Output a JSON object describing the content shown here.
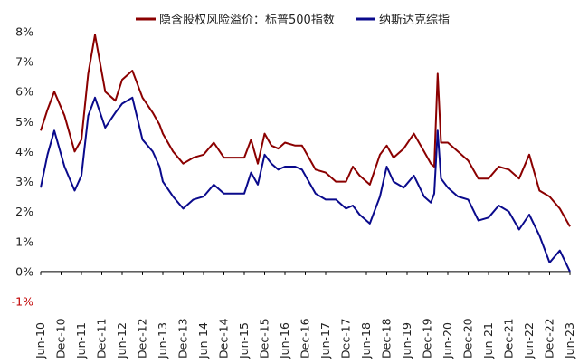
{
  "chart_data": {
    "type": "line",
    "title": "",
    "xlabel": "",
    "ylabel": "",
    "ylim": [
      -1,
      8
    ],
    "yticks": [
      "-1%",
      "0%",
      "1%",
      "2%",
      "3%",
      "4%",
      "5%",
      "6%",
      "7%",
      "8%"
    ],
    "ytick_values": [
      -1,
      0,
      1,
      2,
      3,
      4,
      5,
      6,
      7,
      8
    ],
    "xlim": [
      "2010-06",
      "2023-06"
    ],
    "xticks": [
      "Jun-10",
      "Dec-10",
      "Jun-11",
      "Dec-11",
      "Jun-12",
      "Dec-12",
      "Jun-13",
      "Dec-13",
      "Jun-14",
      "Dec-14",
      "Jun-15",
      "Dec-15",
      "Jun-16",
      "Dec-16",
      "Jun-17",
      "Dec-17",
      "Jun-18",
      "Dec-18",
      "Jun-19",
      "Dec-19",
      "Jun-20",
      "Dec-20",
      "Jun-21",
      "Dec-21",
      "Jun-22",
      "Dec-22",
      "Jun-23"
    ],
    "xtick_values": [
      "2010-06",
      "2010-12",
      "2011-06",
      "2011-12",
      "2012-06",
      "2012-12",
      "2013-06",
      "2013-12",
      "2014-06",
      "2014-12",
      "2015-06",
      "2015-12",
      "2016-06",
      "2016-12",
      "2017-06",
      "2017-12",
      "2018-06",
      "2018-12",
      "2019-06",
      "2019-12",
      "2020-06",
      "2020-12",
      "2021-06",
      "2021-12",
      "2022-06",
      "2022-12",
      "2023-06"
    ],
    "grid": false,
    "legend_position": "top",
    "series": [
      {
        "name": "隐含股权风险溢价：标普500指数",
        "color": "#8b0000",
        "x": [
          "2010-06",
          "2010-08",
          "2010-10",
          "2011-01",
          "2011-04",
          "2011-06",
          "2011-08",
          "2011-10",
          "2012-01",
          "2012-04",
          "2012-06",
          "2012-09",
          "2012-12",
          "2013-03",
          "2013-05",
          "2013-06",
          "2013-09",
          "2013-12",
          "2014-03",
          "2014-06",
          "2014-09",
          "2014-12",
          "2015-03",
          "2015-06",
          "2015-08",
          "2015-10",
          "2015-12",
          "2016-02",
          "2016-04",
          "2016-06",
          "2016-09",
          "2016-11",
          "2017-03",
          "2017-06",
          "2017-09",
          "2017-12",
          "2018-02",
          "2018-04",
          "2018-07",
          "2018-10",
          "2018-12",
          "2019-02",
          "2019-05",
          "2019-08",
          "2019-11",
          "2020-01",
          "2020-02",
          "2020-03",
          "2020-04",
          "2020-06",
          "2020-09",
          "2020-12",
          "2021-03",
          "2021-06",
          "2021-09",
          "2021-12",
          "2022-03",
          "2022-06",
          "2022-09",
          "2022-12",
          "2023-03",
          "2023-06"
        ],
        "y": [
          4.7,
          5.4,
          6.0,
          5.2,
          4.0,
          4.4,
          6.6,
          7.9,
          6.0,
          5.7,
          6.4,
          6.7,
          5.8,
          5.3,
          4.9,
          4.6,
          4.0,
          3.6,
          3.8,
          3.9,
          4.3,
          3.8,
          3.8,
          3.8,
          4.4,
          3.6,
          4.6,
          4.2,
          4.1,
          4.3,
          4.2,
          4.2,
          3.4,
          3.3,
          3.0,
          3.0,
          3.5,
          3.2,
          2.9,
          3.9,
          4.2,
          3.8,
          4.1,
          4.6,
          4.0,
          3.6,
          3.5,
          6.6,
          4.3,
          4.3,
          4.0,
          3.7,
          3.1,
          3.1,
          3.5,
          3.4,
          3.1,
          3.9,
          2.7,
          2.5,
          2.1,
          1.5
        ]
      },
      {
        "name": "纳斯达克综指",
        "color": "#0a0a8c",
        "x": [
          "2010-06",
          "2010-08",
          "2010-10",
          "2011-01",
          "2011-04",
          "2011-06",
          "2011-08",
          "2011-10",
          "2012-01",
          "2012-04",
          "2012-06",
          "2012-09",
          "2012-12",
          "2013-03",
          "2013-05",
          "2013-06",
          "2013-09",
          "2013-12",
          "2014-03",
          "2014-06",
          "2014-09",
          "2014-12",
          "2015-03",
          "2015-06",
          "2015-08",
          "2015-10",
          "2015-12",
          "2016-02",
          "2016-04",
          "2016-06",
          "2016-09",
          "2016-11",
          "2017-03",
          "2017-06",
          "2017-09",
          "2017-12",
          "2018-02",
          "2018-04",
          "2018-07",
          "2018-10",
          "2018-12",
          "2019-02",
          "2019-05",
          "2019-08",
          "2019-11",
          "2020-01",
          "2020-02",
          "2020-03",
          "2020-04",
          "2020-06",
          "2020-09",
          "2020-12",
          "2021-03",
          "2021-06",
          "2021-09",
          "2021-12",
          "2022-03",
          "2022-06",
          "2022-09",
          "2022-12",
          "2023-03",
          "2023-06"
        ],
        "y": [
          2.8,
          3.9,
          4.7,
          3.5,
          2.7,
          3.2,
          5.2,
          5.8,
          4.8,
          5.3,
          5.6,
          5.8,
          4.4,
          4.0,
          3.5,
          3.0,
          2.5,
          2.1,
          2.4,
          2.5,
          2.9,
          2.6,
          2.6,
          2.6,
          3.3,
          2.9,
          3.9,
          3.6,
          3.4,
          3.5,
          3.5,
          3.4,
          2.6,
          2.4,
          2.4,
          2.1,
          2.2,
          1.9,
          1.6,
          2.5,
          3.5,
          3.0,
          2.8,
          3.2,
          2.5,
          2.3,
          2.6,
          4.7,
          3.1,
          2.8,
          2.5,
          2.4,
          1.7,
          1.8,
          2.2,
          2.0,
          1.4,
          1.9,
          1.2,
          0.3,
          0.7,
          0.0
        ]
      }
    ]
  }
}
